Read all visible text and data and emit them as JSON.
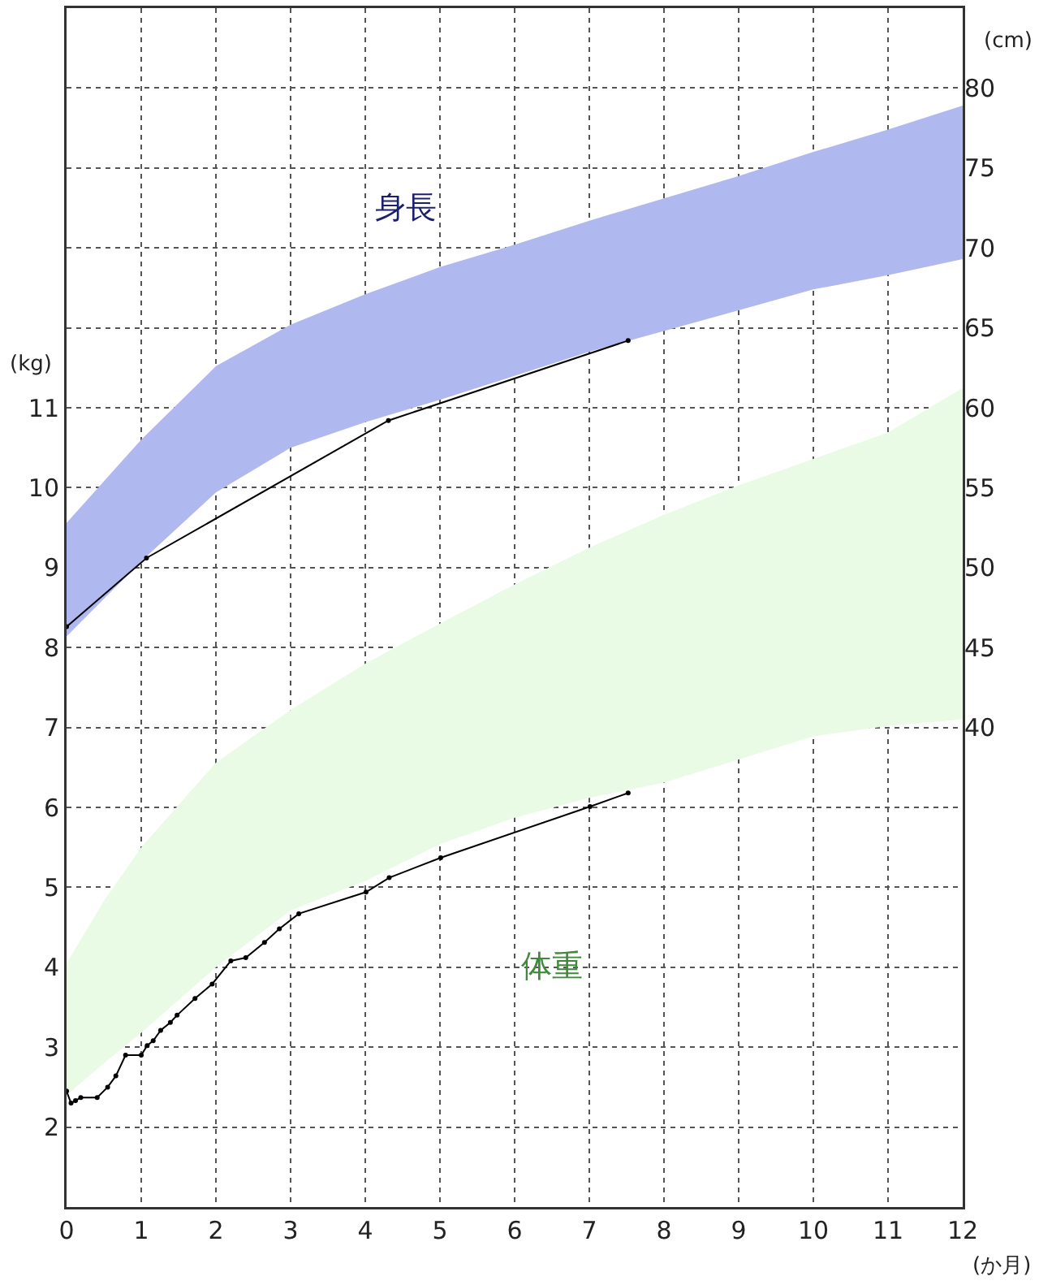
{
  "chart_data": {
    "type": "line",
    "xlabel": "(か月)",
    "ylabel": "(kg)",
    "y2label": "(cm)",
    "xlim": [
      0,
      12
    ],
    "xticks": [
      0,
      1,
      2,
      3,
      4,
      5,
      6,
      7,
      8,
      9,
      10,
      11,
      12
    ],
    "ylim": [
      1,
      16
    ],
    "yticks": [
      2,
      3,
      4,
      5,
      6,
      7,
      8,
      9,
      10,
      11,
      {
        "value": 12,
        "label": null
      },
      {
        "value": 13,
        "label": null
      },
      {
        "value": 14,
        "label": null
      },
      {
        "value": 15,
        "label": null
      }
    ],
    "y2lim": [
      10,
      85
    ],
    "y2ticks": [
      40,
      45,
      50,
      55,
      60,
      65,
      70,
      75,
      80
    ],
    "grid": true,
    "marker": "circle",
    "line_style": "solid",
    "series": [
      {
        "type": "line",
        "axis": "y2",
        "color": "#b0b8f0",
        "x": [
          0,
          1,
          2,
          3,
          4,
          5,
          6,
          7,
          8,
          9,
          10,
          11,
          12
        ],
        "values": [
          null,
          null,
          null,
          null,
          null,
          null,
          null,
          null,
          null,
          null,
          null,
          null,
          null
        ],
        "lower": [
          45.7,
          50.4,
          54.7,
          57.5,
          59.1,
          60.5,
          62.0,
          63.5,
          64.8,
          66.1,
          67.4,
          68.3,
          69.3
        ],
        "upper": [
          52.8,
          58.0,
          62.6,
          65.2,
          67.1,
          68.8,
          70.2,
          71.7,
          73.1,
          74.5,
          76.0,
          77.4,
          78.9
        ]
      },
      {
        "type": "line",
        "color": "#eafbe5",
        "x": [
          0,
          0.5,
          1,
          2,
          3,
          4,
          5,
          6,
          7,
          8,
          9,
          10,
          11,
          12
        ],
        "values": [
          null,
          null,
          null,
          null,
          null,
          null,
          null,
          null,
          null,
          null,
          null,
          null,
          null,
          null
        ],
        "lower": [
          2.4,
          2.8,
          3.18,
          4.0,
          4.71,
          5.08,
          5.54,
          5.87,
          6.12,
          6.31,
          6.6,
          6.89,
          7.02,
          7.1
        ],
        "upper": [
          4.05,
          4.83,
          5.5,
          6.56,
          7.22,
          7.8,
          8.3,
          8.79,
          9.25,
          9.66,
          10.03,
          10.36,
          10.69,
          11.25
        ]
      },
      {
        "type": "line",
        "axis": "y2",
        "color": "#000000",
        "x": [
          0,
          1.07,
          4.31,
          7.52
        ],
        "values": [
          46.3,
          50.6,
          59.2,
          64.2
        ]
      },
      {
        "type": "line",
        "color": "#000000",
        "x": [
          0,
          0.06,
          0.12,
          0.19,
          0.41,
          0.55,
          0.66,
          0.79,
          1.0,
          1.08,
          1.16,
          1.26,
          1.39,
          1.48,
          1.72,
          1.95,
          2.2,
          2.4,
          2.65,
          2.85,
          3.11,
          4.01,
          4.32,
          5.01,
          7.01,
          7.52
        ],
        "values": [
          2.45,
          2.3,
          2.33,
          2.37,
          2.37,
          2.5,
          2.64,
          2.9,
          2.9,
          3.02,
          3.08,
          3.21,
          3.31,
          3.4,
          3.61,
          3.79,
          4.08,
          4.12,
          4.31,
          4.48,
          4.67,
          4.94,
          5.12,
          5.37,
          6.01,
          6.18
        ]
      }
    ],
    "annotations": [
      "身長",
      "体重"
    ]
  }
}
